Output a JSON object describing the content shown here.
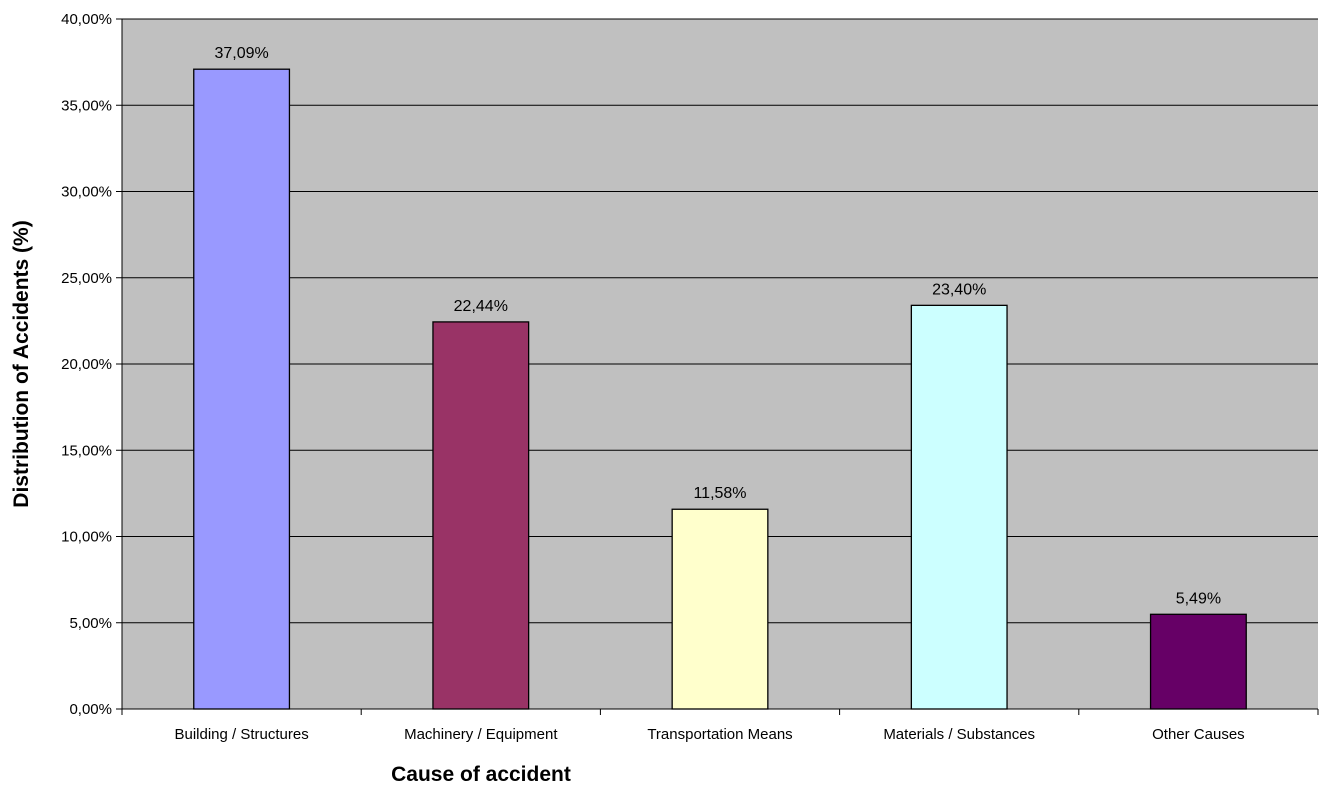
{
  "chart_data": {
    "type": "bar",
    "title": "",
    "xlabel": "Cause of accident",
    "ylabel": "Distribution of Accidents (%)",
    "categories": [
      "Building / Structures",
      "Machinery / Equipment",
      "Transportation Means",
      "Materials / Substances",
      "Other Causes"
    ],
    "values": [
      37.09,
      22.44,
      11.58,
      23.4,
      5.49
    ],
    "data_labels": [
      "37,09%",
      "22,44%",
      "11,58%",
      "23,40%",
      "5,49%"
    ],
    "bar_colors": [
      "#9999ff",
      "#993366",
      "#ffffcc",
      "#ccffff",
      "#660066"
    ],
    "ylim": [
      0,
      40
    ],
    "y_ticks": [
      0,
      5,
      10,
      15,
      20,
      25,
      30,
      35,
      40
    ],
    "y_tick_labels": [
      "0,00%",
      "5,00%",
      "10,00%",
      "15,00%",
      "20,00%",
      "25,00%",
      "30,00%",
      "35,00%",
      "40,00%"
    ],
    "grid": true,
    "legend": "none",
    "plot_background": "#c0c0c0"
  }
}
